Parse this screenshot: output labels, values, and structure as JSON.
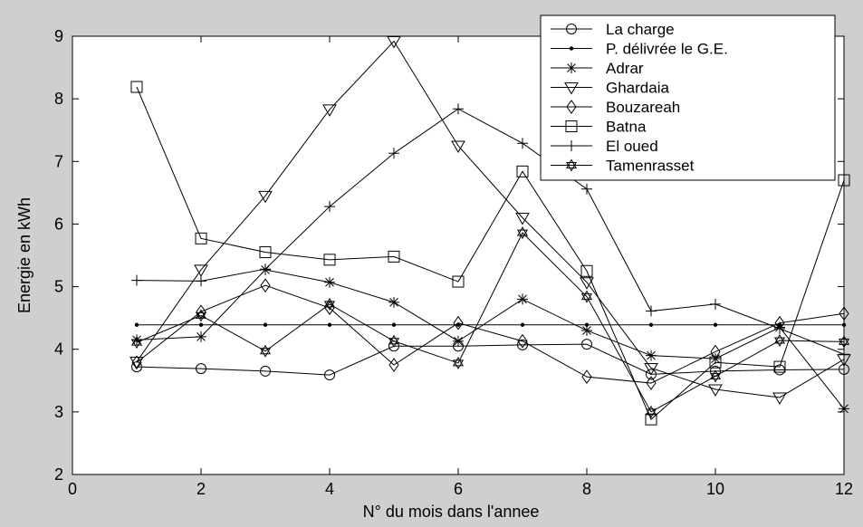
{
  "chart_data": {
    "type": "line",
    "title": "",
    "xlabel": "N° du mois dans l'annee",
    "ylabel": "Energie en kWh",
    "xlim": [
      0,
      12
    ],
    "ylim": [
      2,
      9
    ],
    "xticks": [
      0,
      2,
      4,
      6,
      8,
      10,
      12
    ],
    "yticks": [
      2,
      3,
      4,
      5,
      6,
      7,
      8,
      9
    ],
    "grid": false,
    "legend_position": "top-right",
    "x": [
      1,
      2,
      3,
      4,
      5,
      6,
      7,
      8,
      9,
      10,
      11,
      12
    ],
    "series": [
      {
        "name": "La charge",
        "marker": "circle",
        "values": [
          3.72,
          3.69,
          3.65,
          3.59,
          4.05,
          4.05,
          4.07,
          4.08,
          3.6,
          3.65,
          3.67,
          3.68
        ]
      },
      {
        "name": "P. délivrée le G.E.",
        "marker": "dot",
        "values": [
          4.39,
          4.39,
          4.39,
          4.39,
          4.39,
          4.39,
          4.39,
          4.39,
          4.39,
          4.39,
          4.39,
          4.39
        ]
      },
      {
        "name": "Adrar",
        "marker": "asterisk",
        "values": [
          4.15,
          4.2,
          5.27,
          5.07,
          4.75,
          4.13,
          4.8,
          4.3,
          3.9,
          3.85,
          4.35,
          3.05
        ]
      },
      {
        "name": "Ghardaia",
        "marker": "triangle-down",
        "values": [
          3.8,
          5.27,
          6.45,
          7.83,
          8.92,
          7.25,
          6.1,
          5.07,
          3.7,
          3.36,
          3.23,
          3.84
        ]
      },
      {
        "name": "Bouzareah",
        "marker": "diamond",
        "values": [
          3.79,
          4.6,
          5.02,
          4.66,
          3.75,
          4.42,
          4.13,
          3.56,
          3.46,
          3.96,
          4.42,
          4.57
        ]
      },
      {
        "name": "Batna",
        "marker": "square",
        "values": [
          8.19,
          5.77,
          5.55,
          5.43,
          5.48,
          5.08,
          6.84,
          5.25,
          2.88,
          3.79,
          3.72,
          6.7
        ]
      },
      {
        "name": "El oued",
        "marker": "plus",
        "values": [
          5.1,
          5.09,
          5.28,
          6.28,
          7.13,
          7.84,
          7.29,
          6.56,
          4.61,
          4.72,
          4.33,
          3.92
        ]
      },
      {
        "name": "Tamenrasset",
        "marker": "hexagram",
        "values": [
          4.11,
          4.54,
          3.97,
          4.72,
          4.13,
          3.78,
          5.86,
          4.84,
          3.0,
          3.57,
          4.14,
          4.12
        ]
      }
    ]
  }
}
